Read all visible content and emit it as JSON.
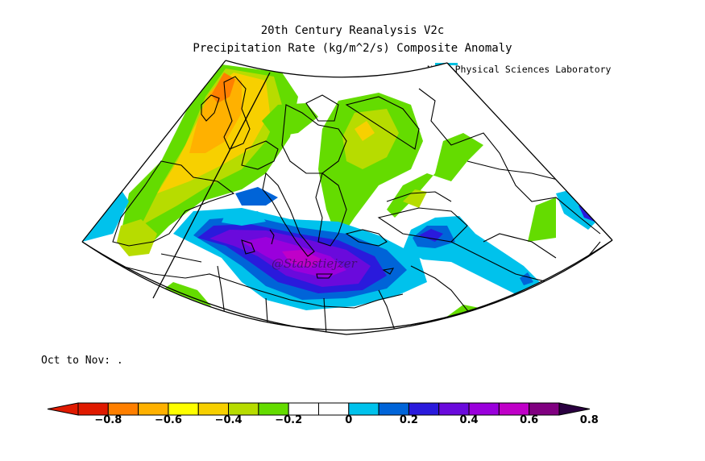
{
  "header": {
    "title_line1": "20th Century Reanalysis V2c",
    "title_line2": "Precipitation Rate (kg/m^2/s) Composite Anomaly",
    "credit": "NOAA Physical Sciences Laboratory"
  },
  "map": {
    "watermark": "@Stabstiejzer",
    "region": "Europe / Mediterranean",
    "projection": "conic",
    "colors": {
      "coast": "#000000",
      "frame": "#000000"
    }
  },
  "period_label": "Oct to Nov: .",
  "colorbar": {
    "tick_labels": [
      "-0.8",
      "-0.6",
      "-0.4",
      "-0.2",
      "0",
      "0.2",
      "0.4",
      "0.6",
      "0.8"
    ],
    "tick_values": [
      -0.8,
      -0.6,
      -0.4,
      -0.2,
      0,
      0.2,
      0.4,
      0.6,
      0.8
    ],
    "colors": [
      "#e01a00",
      "#ff7f00",
      "#ffb100",
      "#ffff00",
      "#f7d000",
      "#b7dc00",
      "#64dc00",
      "#ffffff",
      "#ffffff",
      "#00c2ec",
      "#0064d8",
      "#2a1adc",
      "#6a0adc",
      "#9a00dc",
      "#c000c8",
      "#800080"
    ]
  }
}
